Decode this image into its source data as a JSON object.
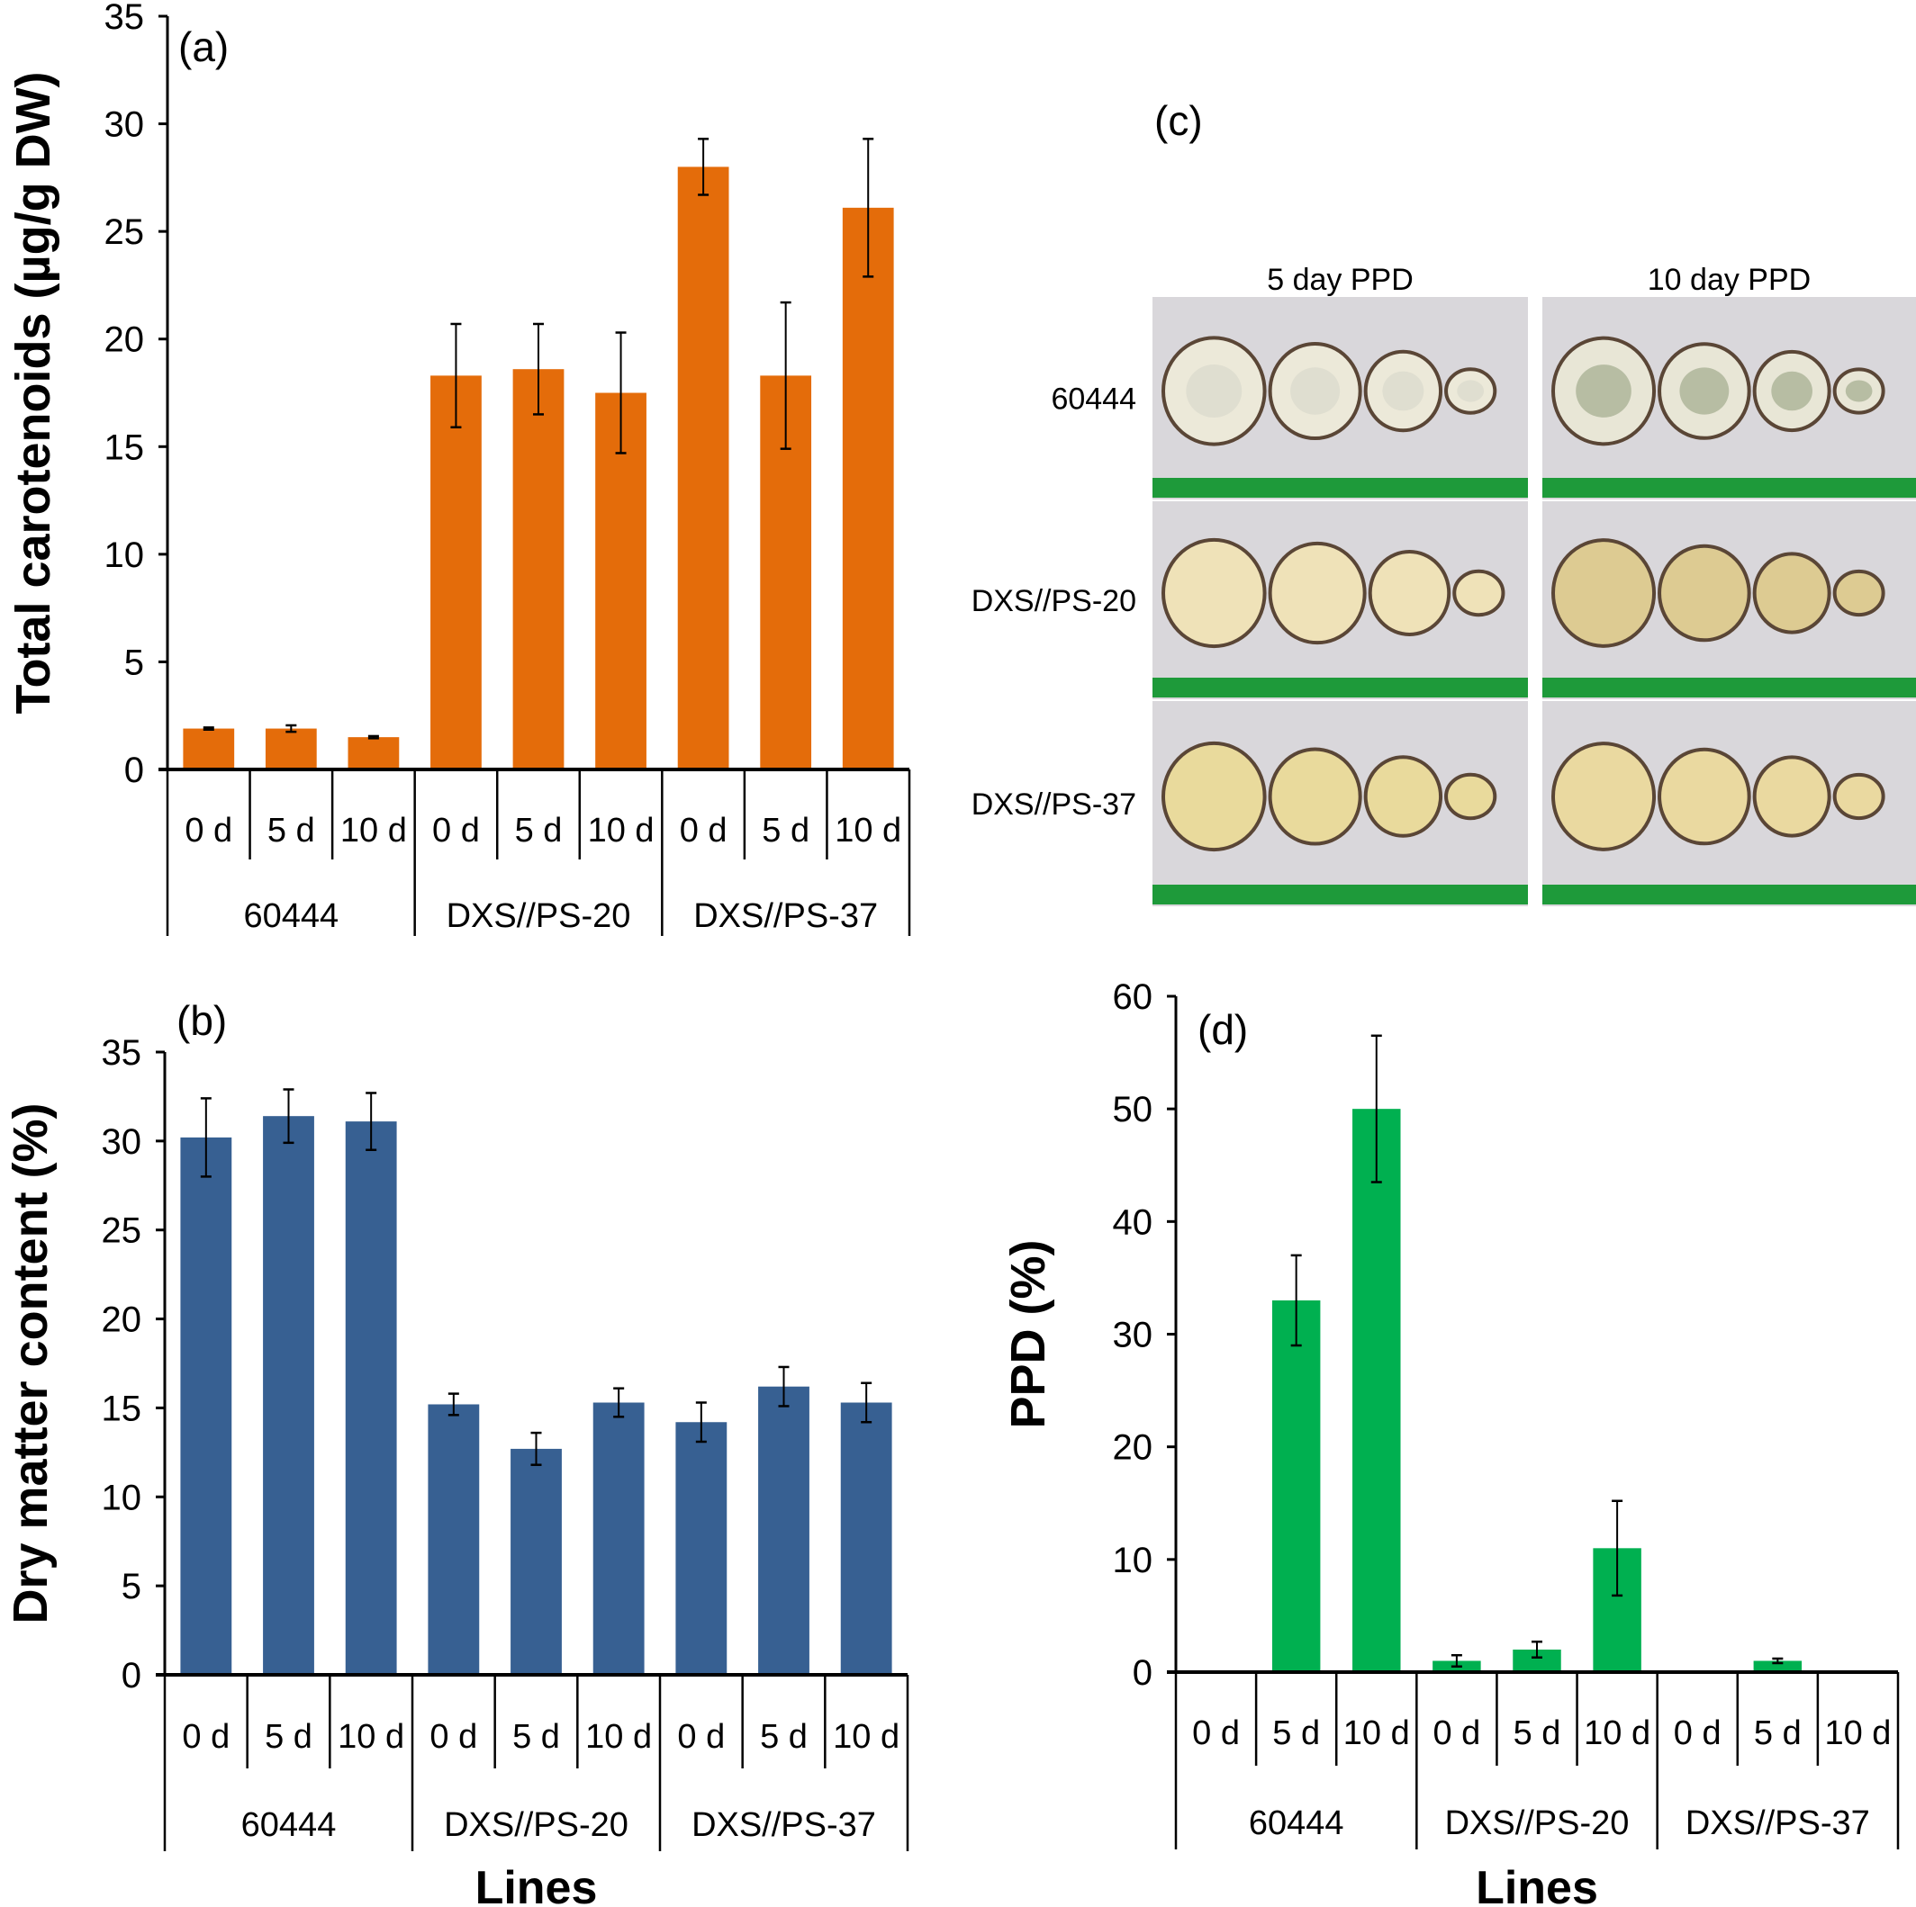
{
  "chart_data": [
    {
      "id": "a",
      "type": "bar",
      "panel_label": "(a)",
      "title": "",
      "ylabel": "Total carotenoids (µg/g DW)",
      "xlabel": "",
      "ylim": [
        0,
        35
      ],
      "yticks": [
        0,
        5,
        10,
        15,
        20,
        25,
        30,
        35
      ],
      "categories": [
        "0 d",
        "5 d",
        "10 d",
        "0 d",
        "5 d",
        "10 d",
        "0 d",
        "5 d",
        "10 d"
      ],
      "groups": [
        "60444",
        "DXS//PS-20",
        "DXS//PS-37"
      ],
      "values": [
        1.9,
        1.9,
        1.5,
        18.3,
        18.6,
        17.5,
        28.0,
        18.3,
        26.1
      ],
      "errors": [
        0.05,
        0.15,
        0.05,
        2.4,
        2.1,
        2.8,
        1.3,
        3.4,
        3.2
      ],
      "color": "#E46C0A"
    },
    {
      "id": "b",
      "type": "bar",
      "panel_label": "(b)",
      "title": "",
      "ylabel": "Dry matter content (%)",
      "xlabel": "Lines",
      "ylim": [
        0,
        35
      ],
      "yticks": [
        0,
        5,
        10,
        15,
        20,
        25,
        30,
        35
      ],
      "categories": [
        "0 d",
        "5 d",
        "10 d",
        "0 d",
        "5 d",
        "10 d",
        "0 d",
        "5 d",
        "10 d"
      ],
      "groups": [
        "60444",
        "DXS//PS-20",
        "DXS//PS-37"
      ],
      "values": [
        30.2,
        31.4,
        31.1,
        15.2,
        12.7,
        15.3,
        14.2,
        16.2,
        15.3
      ],
      "errors": [
        2.2,
        1.5,
        1.6,
        0.6,
        0.9,
        0.8,
        1.1,
        1.1,
        1.1
      ],
      "color": "#376092"
    },
    {
      "id": "d",
      "type": "bar",
      "panel_label": "(d)",
      "title": "",
      "ylabel": "PPD (%)",
      "xlabel": "Lines",
      "ylim": [
        0,
        60
      ],
      "yticks": [
        0,
        10,
        20,
        30,
        40,
        50,
        60
      ],
      "categories": [
        "0 d",
        "5 d",
        "10 d",
        "0 d",
        "5 d",
        "10 d",
        "0 d",
        "5 d",
        "10 d"
      ],
      "groups": [
        "60444",
        "DXS//PS-20",
        "DXS//PS-37"
      ],
      "values": [
        0,
        33,
        50,
        1,
        2,
        11,
        0,
        1,
        0
      ],
      "errors": [
        0,
        4,
        6.5,
        0.5,
        0.7,
        4.2,
        0,
        0.2,
        0
      ],
      "color": "#00B050"
    }
  ],
  "photo_panel": {
    "panel_label": "(c)",
    "columns": [
      "5 day PPD",
      "10 day PPD"
    ],
    "rows": [
      "60444",
      "DXS//PS-20",
      "DXS//PS-37"
    ],
    "flesh_colors": {
      "60444": "#ECE9D9",
      "DXS//PS-20": "#EFE2B8",
      "DXS//PS-37": "#E9DA9C"
    },
    "flesh_colors_10d": {
      "60444": "#E8E6D6",
      "DXS//PS-20": "#DDCB92",
      "DXS//PS-37": "#EAD9A0"
    },
    "ruler_color": "#1E9A3A",
    "background_color": "#D9D7DB"
  }
}
